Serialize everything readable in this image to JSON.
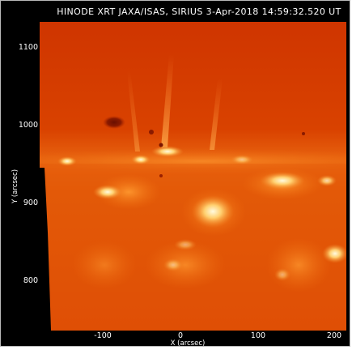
{
  "image": {
    "title": "HINODE XRT JAXA/ISAS, SIRIUS   3-Apr-2018 14:59:32.520 UT",
    "xlabel": "X (arcsec)",
    "ylabel": "Y (arcsec)",
    "x_ticks": [
      "-100",
      "0",
      "100",
      "200"
    ],
    "y_ticks": [
      "1100",
      "1000",
      "900",
      "800"
    ],
    "colors": {
      "background": "#000000",
      "corona_base": "#d63a00",
      "limb_glow": "#f07a10",
      "bright_loop": "#fff0b0"
    }
  }
}
